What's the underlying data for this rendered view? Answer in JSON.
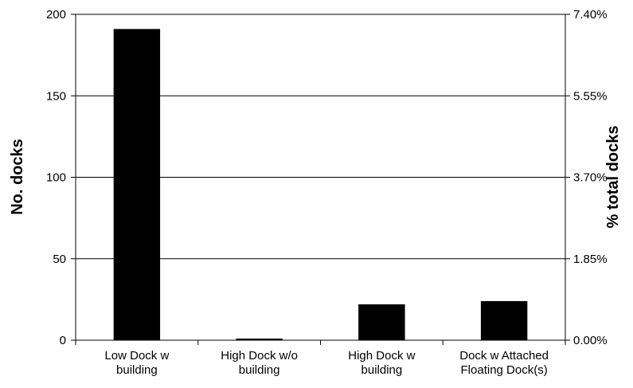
{
  "chart_data": {
    "type": "bar",
    "categories": [
      [
        "Low Dock w",
        "building"
      ],
      [
        "High Dock w/o",
        "building"
      ],
      [
        "High Dock w",
        "building"
      ],
      [
        "Dock w Attached",
        "Floating Dock(s)"
      ]
    ],
    "values": [
      191,
      1,
      22,
      24
    ],
    "ylabel": "No. docks",
    "y2label": "% total docks",
    "ylim": [
      0,
      200
    ],
    "y2lim": [
      0,
      7.4
    ],
    "yticks": [
      "0",
      "50",
      "100",
      "150",
      "200"
    ],
    "yticks_values": [
      0,
      50,
      100,
      150,
      200
    ],
    "y2ticks": [
      "0.00%",
      "1.85%",
      "3.70%",
      "5.55%",
      "7.40%"
    ],
    "grid": true,
    "bar_color": "#000000",
    "grid_color": "#000000"
  }
}
